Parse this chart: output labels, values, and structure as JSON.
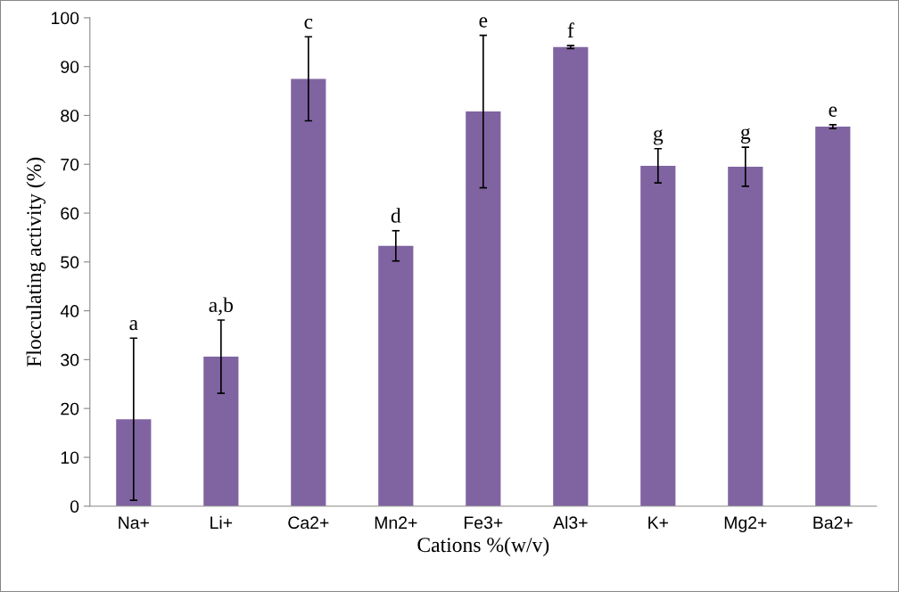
{
  "chart_data": {
    "type": "bar",
    "xlabel": "Cations %(w/v)",
    "ylabel": "Flocculating activity (%)",
    "categories": [
      "Na+",
      "Li+",
      "Ca2+",
      "Mn2+",
      "Fe3+",
      "Al3+",
      "K+",
      "Mg2+",
      "Ba2+"
    ],
    "values": [
      17.8,
      30.6,
      87.5,
      53.3,
      80.8,
      94.0,
      69.7,
      69.5,
      77.7
    ],
    "errors": [
      16.6,
      7.5,
      8.6,
      3.1,
      15.6,
      0.3,
      3.5,
      4.0,
      0.4
    ],
    "color": "#8064a2",
    "ylim": [
      0,
      100
    ],
    "yticks": [
      0,
      10,
      20,
      30,
      40,
      50,
      60,
      70,
      80,
      90,
      100
    ],
    "grid": false,
    "annotations": [
      {
        "text": "a",
        "x": "Na+",
        "y": 34.4
      },
      {
        "text": "a,b",
        "x": "Li+",
        "y": 38.1
      },
      {
        "text": "c",
        "x": "Ca2+",
        "y": 96.1
      },
      {
        "text": "d",
        "x": "Mn2+",
        "y": 56.4
      },
      {
        "text": "e",
        "x": "Fe3+",
        "y": 96.4
      },
      {
        "text": "f",
        "x": "Al3+",
        "y": 94.3
      },
      {
        "text": "g",
        "x": "K+",
        "y": 73.2
      },
      {
        "text": "g",
        "x": "Mg2+",
        "y": 73.5
      },
      {
        "text": "e",
        "x": "Ba2+",
        "y": 78.1
      }
    ]
  }
}
